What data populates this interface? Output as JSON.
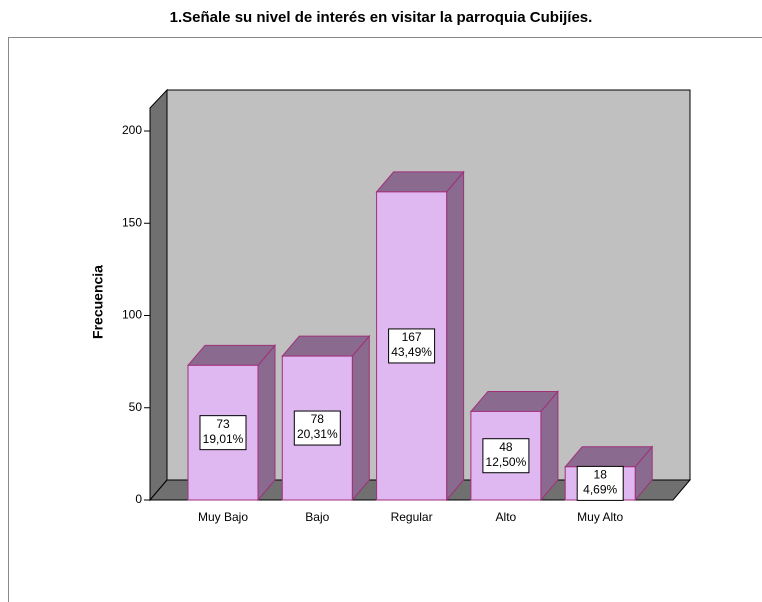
{
  "chart_data": {
    "type": "bar3d",
    "title": "1.Señale su nivel de interés en visitar la parroquia Cubijíes.",
    "y_label": "Frecuencia",
    "categories": [
      "Muy Bajo",
      "Bajo",
      "Regular",
      "Alto",
      "Muy Alto"
    ],
    "values": [
      73,
      78,
      167,
      48,
      18
    ],
    "percentages": [
      19.01,
      20.31,
      43.49,
      12.5,
      4.69
    ],
    "percentage_labels": [
      "19,01%",
      "20,31%",
      "43,49%",
      "12,50%",
      "4,69%"
    ],
    "color": "#dfb8f2",
    "ylim": [
      0,
      200
    ],
    "yticks": [
      0,
      50,
      100,
      150,
      200
    ]
  }
}
